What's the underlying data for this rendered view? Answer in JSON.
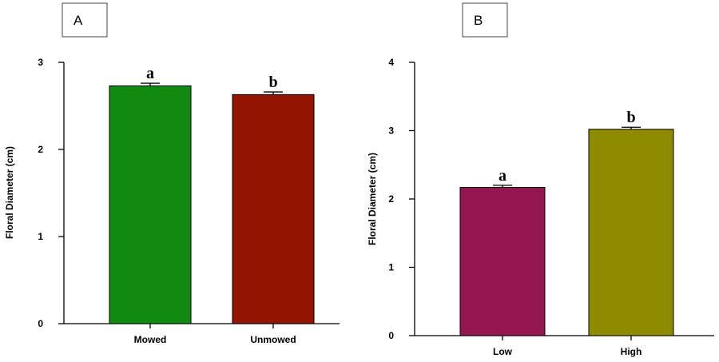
{
  "chart_data": [
    {
      "panel": "A",
      "type": "bar",
      "ylabel": "Floral Diameter (cm)",
      "xlabel": "",
      "ylim": [
        0,
        3
      ],
      "yticks": [
        0,
        1,
        2,
        3
      ],
      "categories": [
        "Mowed",
        "Unmowed"
      ],
      "values": [
        2.73,
        2.63
      ],
      "errors": [
        0.03,
        0.03
      ],
      "significance": [
        "a",
        "b"
      ],
      "colors": [
        "#108a10",
        "#921401"
      ],
      "grid": false
    },
    {
      "panel": "B",
      "type": "bar",
      "ylabel": "Floral Diameter (cm)",
      "xlabel": "",
      "ylim": [
        0,
        4
      ],
      "yticks": [
        0,
        1,
        2,
        3,
        4
      ],
      "categories": [
        "Low",
        "High"
      ],
      "values": [
        2.17,
        3.02
      ],
      "errors": [
        0.03,
        0.03
      ],
      "significance": [
        "a",
        "b"
      ],
      "colors": [
        "#931650",
        "#8f8b01"
      ],
      "grid": false
    }
  ]
}
